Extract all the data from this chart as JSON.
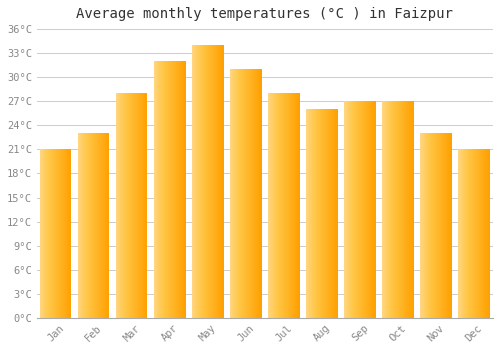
{
  "title": "Average monthly temperatures (°C ) in Faizpur",
  "months": [
    "Jan",
    "Feb",
    "Mar",
    "Apr",
    "May",
    "Jun",
    "Jul",
    "Aug",
    "Sep",
    "Oct",
    "Nov",
    "Dec"
  ],
  "values": [
    21,
    23,
    28,
    32,
    34,
    31,
    28,
    26,
    27,
    27,
    23,
    21
  ],
  "bar_color_left": "#FFB300",
  "bar_color_right": "#FFA000",
  "bar_color_center": "#FFC84A",
  "ylim": [
    0,
    36
  ],
  "ytick_step": 3,
  "background_color": "#FFFFFF",
  "grid_color": "#CCCCCC",
  "title_fontsize": 10,
  "tick_fontsize": 7.5,
  "tick_label_color": "#888888",
  "title_color": "#333333",
  "bar_width": 0.82,
  "figsize": [
    5.0,
    3.5
  ],
  "dpi": 100
}
